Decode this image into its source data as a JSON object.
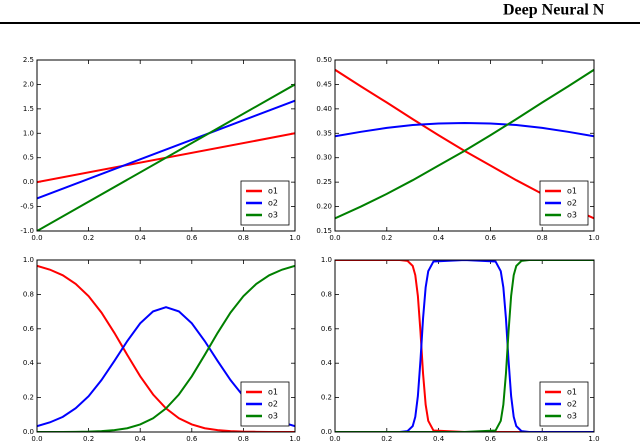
{
  "header": "Deep Neural N",
  "chart_data": [
    {
      "type": "line",
      "x": [
        0,
        1
      ],
      "series": [
        {
          "name": "o1",
          "color": "#ff0000",
          "values": [
            0,
            1
          ]
        },
        {
          "name": "o2",
          "color": "#0000ff",
          "values": [
            -0.333,
            1.667
          ]
        },
        {
          "name": "o3",
          "color": "#008000",
          "values": [
            -1,
            2
          ]
        }
      ],
      "xlim": [
        0,
        1
      ],
      "ylim": [
        -1,
        2.5
      ],
      "xticks": [
        {
          "value": 0,
          "label": "0.0"
        },
        0.2,
        0.4,
        0.6,
        0.8,
        {
          "value": 1,
          "label": "1.0"
        }
      ],
      "yticks": [
        {
          "value": -1,
          "label": "-1.0"
        },
        -0.5,
        {
          "value": 0,
          "label": "0.0"
        },
        0.5,
        {
          "value": 1,
          "label": "1.0"
        },
        1.5,
        {
          "value": 2,
          "label": "2.0"
        },
        2.5
      ],
      "legend": "lower right",
      "grid": false
    },
    {
      "type": "line",
      "x": [
        0,
        0.1,
        0.2,
        0.3,
        0.4,
        0.5,
        0.6,
        0.7,
        0.8,
        0.9,
        1
      ],
      "series": [
        {
          "name": "o1",
          "color": "#ff0000",
          "values": [
            0.48,
            0.446,
            0.413,
            0.379,
            0.346,
            0.314,
            0.284,
            0.254,
            0.226,
            0.2,
            0.176
          ]
        },
        {
          "name": "o2",
          "color": "#0000ff",
          "values": [
            0.344,
            0.353,
            0.361,
            0.367,
            0.37,
            0.371,
            0.37,
            0.367,
            0.361,
            0.353,
            0.344
          ]
        },
        {
          "name": "o3",
          "color": "#008000",
          "values": [
            0.176,
            0.2,
            0.226,
            0.254,
            0.284,
            0.314,
            0.346,
            0.379,
            0.413,
            0.446,
            0.48
          ]
        }
      ],
      "xlim": [
        0,
        1
      ],
      "ylim": [
        0.15,
        0.5
      ],
      "xticks": [
        {
          "value": 0,
          "label": "0.0"
        },
        0.2,
        0.4,
        0.6,
        0.8,
        {
          "value": 1,
          "label": "1.0"
        }
      ],
      "yticks": [
        0.15,
        {
          "value": 0.2,
          "label": "0.20"
        },
        0.25,
        {
          "value": 0.3,
          "label": "0.30"
        },
        0.35,
        {
          "value": 0.4,
          "label": "0.40"
        },
        0.45,
        {
          "value": 0.5,
          "label": "0.50"
        }
      ],
      "legend": "lower right",
      "grid": false
    },
    {
      "type": "line",
      "x": [
        0,
        0.05,
        0.1,
        0.15,
        0.2,
        0.25,
        0.3,
        0.35,
        0.4,
        0.45,
        0.5,
        0.55,
        0.6,
        0.65,
        0.7,
        0.75,
        0.8,
        0.85,
        0.9,
        0.95,
        1
      ],
      "series": [
        {
          "name": "o1",
          "color": "#ff0000",
          "values": [
            0.966,
            0.944,
            0.911,
            0.861,
            0.79,
            0.694,
            0.576,
            0.448,
            0.324,
            0.218,
            0.137,
            0.08,
            0.044,
            0.022,
            0.011,
            0.005,
            0.002,
            0.001,
            0,
            0,
            0
          ]
        },
        {
          "name": "o2",
          "color": "#0000ff",
          "values": [
            0.034,
            0.056,
            0.088,
            0.138,
            0.208,
            0.302,
            0.413,
            0.529,
            0.632,
            0.701,
            0.726,
            0.701,
            0.632,
            0.529,
            0.413,
            0.302,
            0.208,
            0.138,
            0.088,
            0.056,
            0.034
          ]
        },
        {
          "name": "o3",
          "color": "#008000",
          "values": [
            0,
            0,
            0,
            0.001,
            0.002,
            0.005,
            0.011,
            0.022,
            0.044,
            0.08,
            0.137,
            0.218,
            0.324,
            0.448,
            0.576,
            0.694,
            0.79,
            0.861,
            0.911,
            0.944,
            0.966
          ]
        }
      ],
      "xlim": [
        0,
        1
      ],
      "ylim": [
        0,
        1
      ],
      "xticks": [
        {
          "value": 0,
          "label": "0.0"
        },
        0.2,
        0.4,
        0.6,
        0.8,
        {
          "value": 1,
          "label": "1.0"
        }
      ],
      "yticks": [
        {
          "value": 0,
          "label": "0.0"
        },
        0.2,
        0.4,
        0.6,
        0.8,
        {
          "value": 1,
          "label": "1.0"
        }
      ],
      "legend": "lower right",
      "grid": false
    },
    {
      "type": "line",
      "x": [
        0,
        0.25,
        0.28,
        0.3,
        0.31,
        0.32,
        0.33,
        0.34,
        0.35,
        0.36,
        0.38,
        0.5,
        0.62,
        0.64,
        0.65,
        0.66,
        0.67,
        0.68,
        0.69,
        0.7,
        0.72,
        0.75,
        1
      ],
      "series": [
        {
          "name": "o1",
          "color": "#ff0000",
          "values": [
            1,
            1,
            0.995,
            0.966,
            0.912,
            0.791,
            0.583,
            0.339,
            0.159,
            0.065,
            0.009,
            0,
            0,
            0,
            0,
            0,
            0,
            0,
            0,
            0,
            0,
            0,
            0
          ]
        },
        {
          "name": "o2",
          "color": "#0000ff",
          "values": [
            0,
            0,
            0.005,
            0.034,
            0.088,
            0.209,
            0.417,
            0.661,
            0.841,
            0.935,
            0.991,
            1,
            0.991,
            0.935,
            0.841,
            0.661,
            0.417,
            0.209,
            0.088,
            0.034,
            0.005,
            0,
            0
          ]
        },
        {
          "name": "o3",
          "color": "#008000",
          "values": [
            0,
            0,
            0,
            0,
            0,
            0,
            0,
            0,
            0,
            0,
            0,
            0,
            0.009,
            0.065,
            0.159,
            0.339,
            0.583,
            0.791,
            0.912,
            0.966,
            0.995,
            1,
            1
          ]
        }
      ],
      "xlim": [
        0,
        1
      ],
      "ylim": [
        0,
        1
      ],
      "xticks": [
        {
          "value": 0,
          "label": "0.0"
        },
        0.2,
        0.4,
        0.6,
        0.8,
        {
          "value": 1,
          "label": "1.0"
        }
      ],
      "yticks": [
        {
          "value": 0,
          "label": "0.0"
        },
        0.2,
        0.4,
        0.6,
        0.8,
        {
          "value": 1,
          "label": "1.0"
        }
      ],
      "legend": "lower right",
      "grid": false
    }
  ]
}
